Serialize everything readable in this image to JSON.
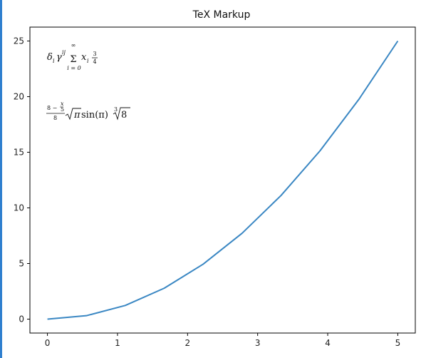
{
  "chart_data": {
    "type": "line",
    "title": "TeX Markup",
    "xlabel": "",
    "ylabel": "",
    "xlim": [
      -0.25,
      5.25
    ],
    "ylim": [
      -1.25,
      26.25
    ],
    "xticks": [
      0,
      1,
      2,
      3,
      4,
      5
    ],
    "yticks": [
      0,
      5,
      10,
      15,
      20,
      25
    ],
    "grid": false,
    "series": [
      {
        "color": "#3a87c3",
        "x": [
          0,
          0.556,
          1.111,
          1.667,
          2.222,
          2.778,
          3.333,
          3.889,
          4.444,
          5.0
        ],
        "y": [
          0,
          0.31,
          1.23,
          2.78,
          4.94,
          7.72,
          11.11,
          15.12,
          19.75,
          25.0
        ]
      }
    ],
    "annotations": [
      {
        "formula_1": {
          "delta": "δ",
          "delta_sub": "i",
          "gamma": "γ",
          "gamma_sup": "ij",
          "sum": "Σ",
          "sum_top": "∞",
          "sum_bottom": "i = 0",
          "x": "x",
          "x_sub": "i",
          "frac_num": "3",
          "frac_den": "4"
        }
      },
      {
        "formula_2": {
          "frac_num_a": "8 −",
          "frac_num_b_num": "x",
          "frac_num_b_den": "5",
          "frac_den": "8",
          "sqrt_arg": "π",
          "sin_text": "sin(π)",
          "root_index": "3",
          "root_arg": "8"
        }
      }
    ]
  }
}
